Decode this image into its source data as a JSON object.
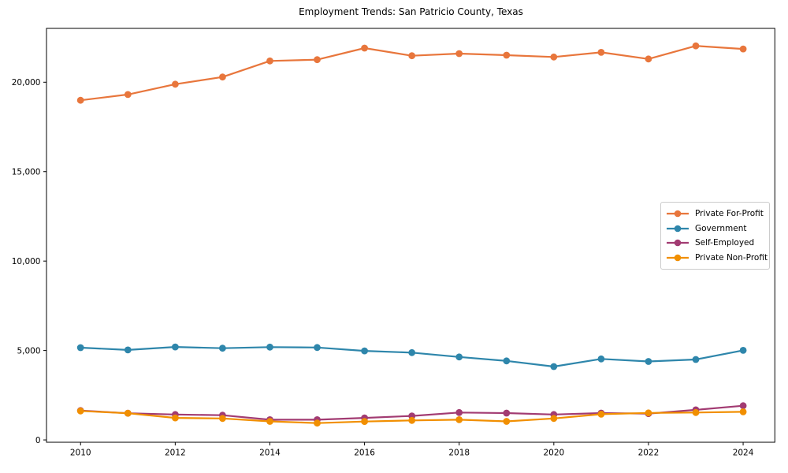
{
  "chart_data": {
    "type": "line",
    "title": "Employment Trends: San Patricio County, Texas",
    "xlabel": "",
    "ylabel": "",
    "grid": false,
    "legend_position": "center right",
    "xlim": [
      2009.28,
      2024.67
    ],
    "ylim": [
      -130,
      23010
    ],
    "xticks": [
      2010,
      2012,
      2014,
      2016,
      2018,
      2020,
      2022,
      2024
    ],
    "yticks": [
      0,
      5000,
      10000,
      15000,
      20000
    ],
    "ytick_labels": [
      "0",
      "5,000",
      "10,000",
      "15,000",
      "20,000"
    ],
    "x": [
      2010,
      2011,
      2012,
      2013,
      2014,
      2015,
      2016,
      2017,
      2018,
      2019,
      2020,
      2021,
      2022,
      2023,
      2024
    ],
    "series": [
      {
        "name": "Private For-Profit",
        "color": "#E8763C",
        "values": [
          18990,
          19310,
          19890,
          20290,
          21190,
          21260,
          21910,
          21480,
          21600,
          21510,
          21410,
          21670,
          21300,
          22030,
          21860
        ]
      },
      {
        "name": "Government",
        "color": "#2E86AB",
        "values": [
          5160,
          5030,
          5200,
          5130,
          5190,
          5170,
          4980,
          4880,
          4640,
          4420,
          4100,
          4530,
          4390,
          4500,
          5010
        ]
      },
      {
        "name": "Self-Employed",
        "color": "#A23B72",
        "values": [
          1640,
          1490,
          1420,
          1380,
          1130,
          1130,
          1230,
          1340,
          1530,
          1500,
          1420,
          1500,
          1470,
          1680,
          1910
        ]
      },
      {
        "name": "Private Non-Profit",
        "color": "#F18F01",
        "values": [
          1620,
          1490,
          1230,
          1200,
          1040,
          940,
          1030,
          1090,
          1130,
          1040,
          1200,
          1440,
          1510,
          1530,
          1570
        ]
      }
    ]
  }
}
